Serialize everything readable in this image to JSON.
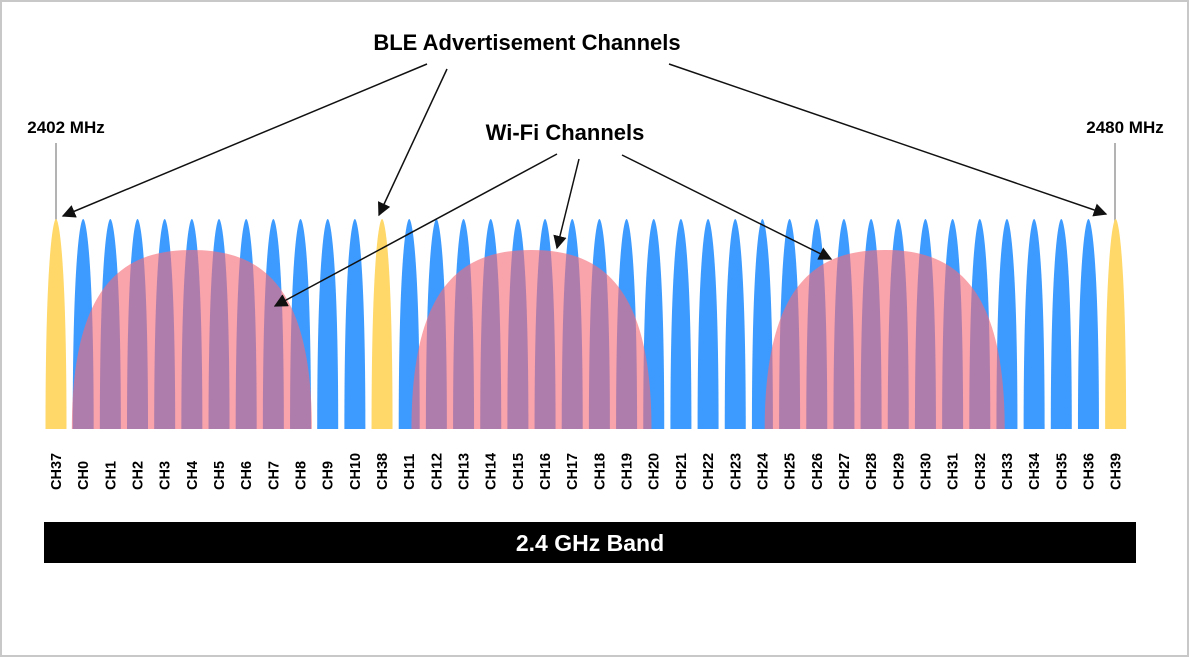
{
  "title": "BLE Advertisement Channels",
  "wifi_title": "Wi-Fi Channels",
  "freq_low": "2402 MHz",
  "freq_high": "2480 MHz",
  "band_label": "2.4 GHz Band",
  "channels": [
    {
      "label": "CH37",
      "kind": "advertising"
    },
    {
      "label": "CH0",
      "kind": "data"
    },
    {
      "label": "CH1",
      "kind": "data"
    },
    {
      "label": "CH2",
      "kind": "data"
    },
    {
      "label": "CH3",
      "kind": "data"
    },
    {
      "label": "CH4",
      "kind": "data"
    },
    {
      "label": "CH5",
      "kind": "data"
    },
    {
      "label": "CH6",
      "kind": "data"
    },
    {
      "label": "CH7",
      "kind": "data"
    },
    {
      "label": "CH8",
      "kind": "data"
    },
    {
      "label": "CH9",
      "kind": "data"
    },
    {
      "label": "CH10",
      "kind": "data"
    },
    {
      "label": "CH38",
      "kind": "advertising"
    },
    {
      "label": "CH11",
      "kind": "data"
    },
    {
      "label": "CH12",
      "kind": "data"
    },
    {
      "label": "CH13",
      "kind": "data"
    },
    {
      "label": "CH14",
      "kind": "data"
    },
    {
      "label": "CH15",
      "kind": "data"
    },
    {
      "label": "CH16",
      "kind": "data"
    },
    {
      "label": "CH17",
      "kind": "data"
    },
    {
      "label": "CH18",
      "kind": "data"
    },
    {
      "label": "CH19",
      "kind": "data"
    },
    {
      "label": "CH20",
      "kind": "data"
    },
    {
      "label": "CH21",
      "kind": "data"
    },
    {
      "label": "CH22",
      "kind": "data"
    },
    {
      "label": "CH23",
      "kind": "data"
    },
    {
      "label": "CH24",
      "kind": "data"
    },
    {
      "label": "CH25",
      "kind": "data"
    },
    {
      "label": "CH26",
      "kind": "data"
    },
    {
      "label": "CH27",
      "kind": "data"
    },
    {
      "label": "CH28",
      "kind": "data"
    },
    {
      "label": "CH29",
      "kind": "data"
    },
    {
      "label": "CH30",
      "kind": "data"
    },
    {
      "label": "CH31",
      "kind": "data"
    },
    {
      "label": "CH32",
      "kind": "data"
    },
    {
      "label": "CH33",
      "kind": "data"
    },
    {
      "label": "CH34",
      "kind": "data"
    },
    {
      "label": "CH35",
      "kind": "data"
    },
    {
      "label": "CH36",
      "kind": "data"
    },
    {
      "label": "CH39",
      "kind": "advertising"
    }
  ],
  "wifi_channels": [
    {
      "center_slot": 5
    },
    {
      "center_slot": 17.5
    },
    {
      "center_slot": 30.5
    }
  ],
  "colors": {
    "advertising": "#FFD869",
    "data": "#3D9BFF",
    "wifi": "#F56A78",
    "band_bar": "#000000",
    "frame": "#C8C8C8"
  }
}
